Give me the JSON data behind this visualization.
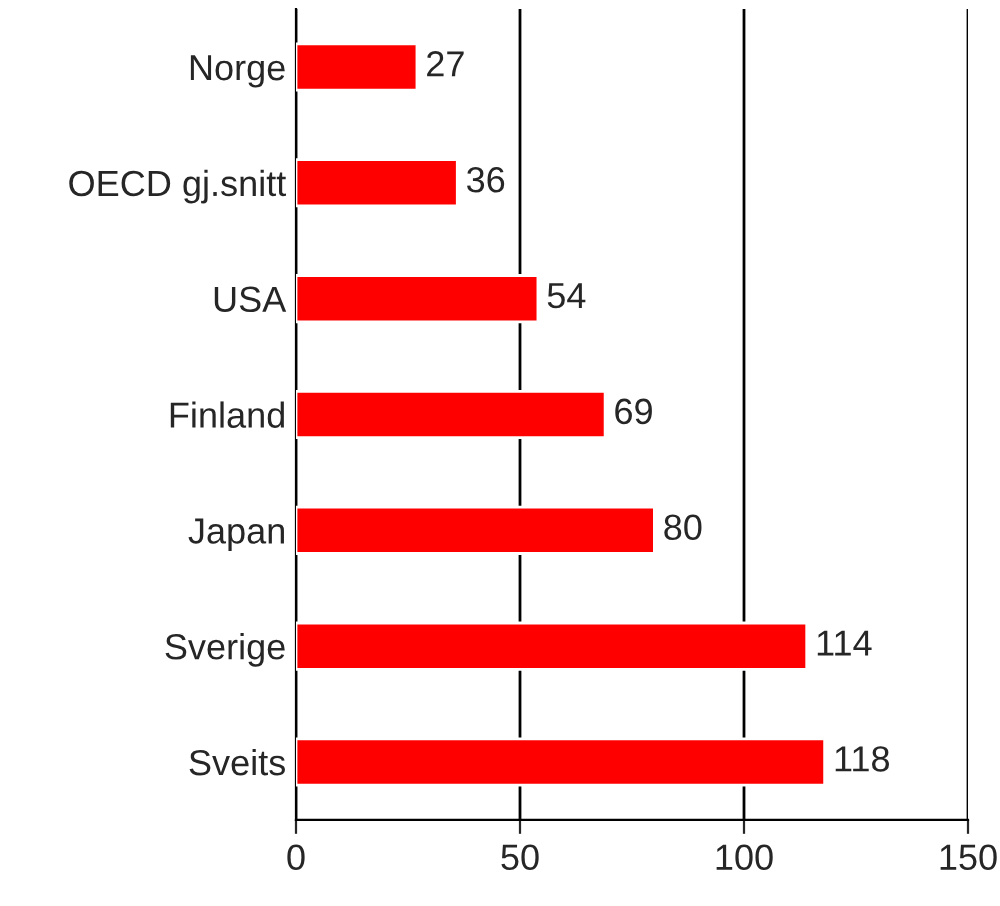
{
  "chart_data": {
    "type": "bar",
    "orientation": "horizontal",
    "categories": [
      "Norge",
      "OECD gj.snitt",
      "USA",
      "Finland",
      "Japan",
      "Sverige",
      "Sveits"
    ],
    "values": [
      27,
      36,
      54,
      69,
      80,
      114,
      118
    ],
    "color": "#ff0000",
    "xlim": [
      0,
      150
    ],
    "xticks": [
      0,
      50,
      100,
      150
    ],
    "grid": "x",
    "data_labels": true
  }
}
